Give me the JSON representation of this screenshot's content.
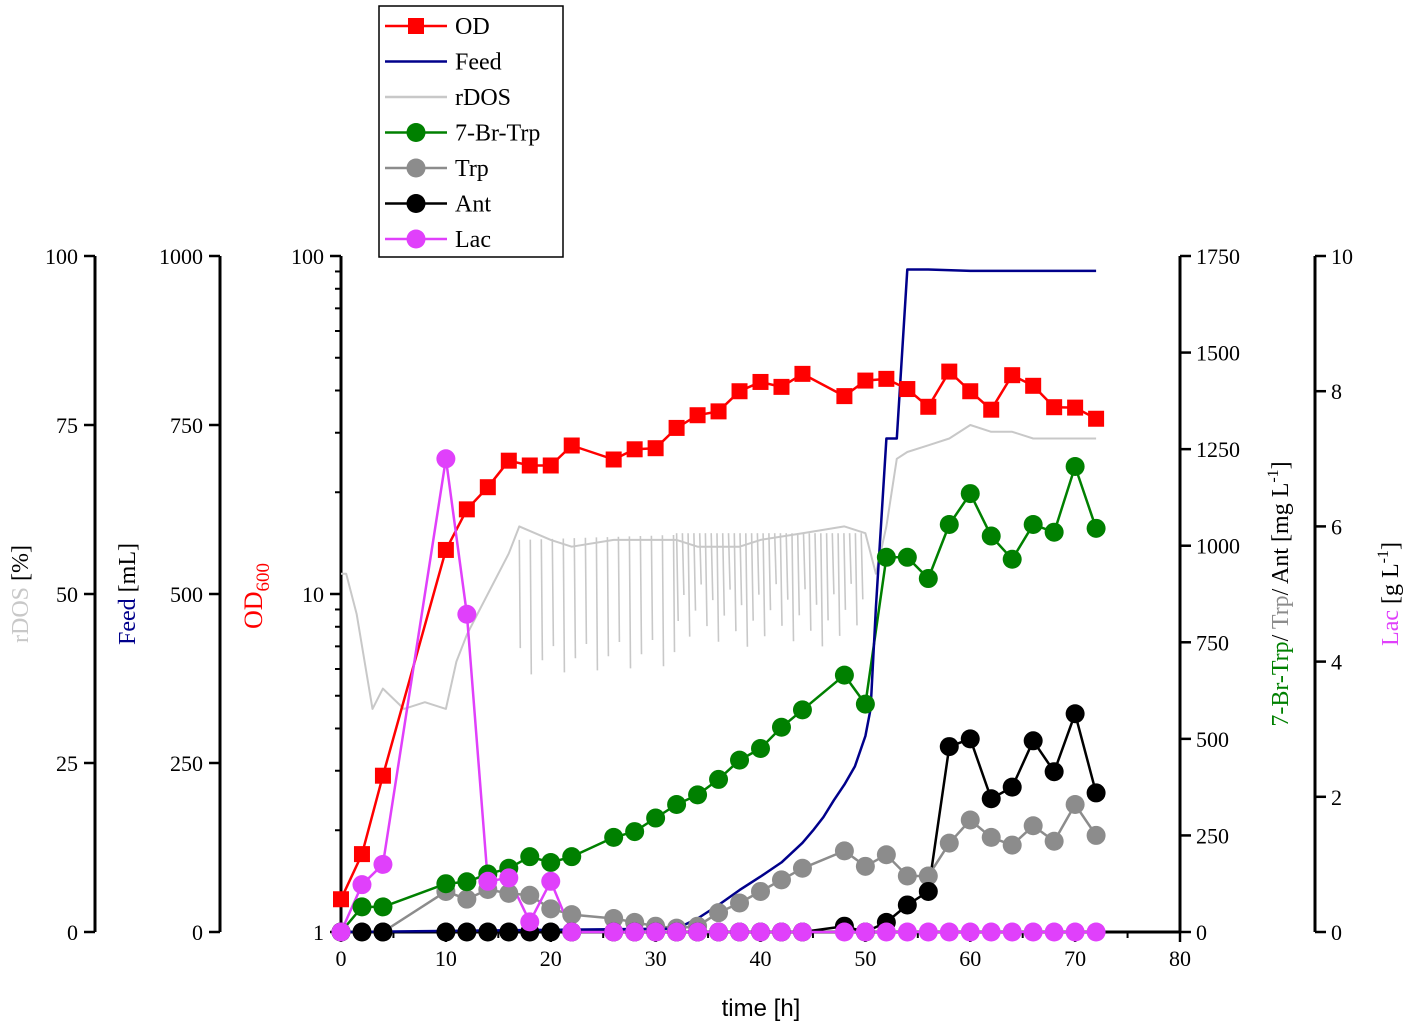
{
  "chart_data": {
    "type": "line",
    "xlabel": "time [h]",
    "x_axis": {
      "min": 0,
      "max": 80,
      "ticks": [
        0,
        10,
        20,
        30,
        40,
        50,
        60,
        70,
        80
      ]
    },
    "axes": {
      "rdos": {
        "label": "rDOS",
        "unit": " [%]",
        "min": 0,
        "max": 100,
        "ticks": [
          0,
          25,
          50,
          75,
          100
        ],
        "color": "#c8c8c8"
      },
      "feed": {
        "label": "Feed",
        "unit": " [mL]",
        "min": 0,
        "max": 1000,
        "ticks": [
          0,
          250,
          500,
          750,
          1000
        ],
        "color": "#00008b"
      },
      "od": {
        "label": "OD",
        "sub": "600",
        "min": 1,
        "max": 100,
        "scale": "log",
        "ticks": [
          "1",
          "10",
          "100"
        ],
        "color": "#ff0000"
      },
      "conc": {
        "label_parts": [
          "7-Br-Trp",
          "/ ",
          "Trp",
          "/ Ant [mg L",
          "-1",
          "]"
        ],
        "min": 0,
        "max": 1750,
        "ticks": [
          0,
          250,
          500,
          750,
          1000,
          1250,
          1500,
          1750
        ]
      },
      "lac": {
        "label": "Lac",
        "unit": " [g L",
        "sup": "-1",
        "unit_end": "]",
        "min": 0,
        "max": 10,
        "ticks": [
          0,
          2,
          4,
          6,
          8,
          10
        ],
        "color": "#e040fb"
      }
    },
    "legend": [
      "OD",
      "Feed",
      "rDOS",
      "7-Br-Trp",
      "Trp",
      "Ant",
      "Lac"
    ],
    "series": [
      {
        "name": "OD",
        "axis": "od",
        "color": "#ff0000",
        "marker": "square",
        "x": [
          0,
          2,
          4,
          10,
          12,
          14,
          16,
          18,
          20,
          22,
          26,
          28,
          30,
          32,
          34,
          36,
          38,
          40,
          42,
          44,
          48,
          50,
          52,
          54,
          56,
          58,
          60,
          62,
          64,
          66,
          68,
          70,
          72
        ],
        "y": [
          1.25,
          1.7,
          2.9,
          13.5,
          17.8,
          20.7,
          24.8,
          24.0,
          24.0,
          27.5,
          25.0,
          26.8,
          27.0,
          31.0,
          33.8,
          34.7,
          39.8,
          42.4,
          41.0,
          44.8,
          38.5,
          42.8,
          43.3,
          40.4,
          35.8,
          45.5,
          39.8,
          35.1,
          44.4,
          41.3,
          35.7,
          35.6,
          33.0
        ]
      },
      {
        "name": "Feed",
        "axis": "feed",
        "color": "#00008b",
        "marker": "none",
        "x": [
          0,
          32,
          34,
          36,
          38,
          40,
          42,
          44,
          45,
          46,
          47,
          48,
          49,
          50,
          50.5,
          51,
          52,
          53,
          54,
          56,
          60,
          72
        ],
        "y": [
          0,
          5,
          20,
          40,
          62,
          82,
          103,
          132,
          150,
          170,
          195,
          218,
          245,
          290,
          330,
          480,
          730,
          730,
          980,
          980,
          978,
          978
        ]
      },
      {
        "name": "rDOS",
        "axis": "rdos",
        "color": "#c8c8c8",
        "marker": "none",
        "x": [
          0,
          0.5,
          1.5,
          3,
          4,
          6,
          8,
          10,
          11,
          12,
          13,
          14,
          16,
          17,
          20,
          22,
          26,
          32,
          34,
          38,
          40,
          44,
          48,
          50,
          51,
          52,
          53,
          54,
          56,
          58,
          60,
          62,
          64,
          66,
          68,
          70,
          72
        ],
        "y": [
          53,
          53,
          47,
          33,
          36,
          33,
          34,
          33,
          40,
          44,
          47,
          50,
          56,
          60,
          58,
          57,
          58,
          58,
          57,
          57,
          58,
          59,
          60,
          59,
          53,
          60,
          70,
          71,
          72,
          73,
          75,
          74,
          74,
          73,
          73,
          73,
          73
        ]
      },
      {
        "name": "7-Br-Trp",
        "axis": "conc",
        "color": "#008000",
        "marker": "circle",
        "x": [
          0,
          2,
          4,
          10,
          12,
          14,
          16,
          18,
          20,
          22,
          26,
          28,
          30,
          32,
          34,
          36,
          38,
          40,
          42,
          44,
          48,
          50,
          52,
          54,
          56,
          58,
          60,
          62,
          64,
          66,
          68,
          70,
          72
        ],
        "y": [
          0,
          65,
          65,
          125,
          130,
          150,
          165,
          195,
          180,
          195,
          245,
          260,
          295,
          330,
          355,
          395,
          445,
          475,
          530,
          575,
          665,
          590,
          970,
          970,
          915,
          1055,
          1135,
          1025,
          965,
          1055,
          1035,
          1205,
          1045
        ]
      },
      {
        "name": "Trp",
        "axis": "conc",
        "color": "#8c8c8c",
        "marker": "circle",
        "x": [
          0,
          4,
          10,
          12,
          14,
          16,
          18,
          20,
          22,
          26,
          28,
          30,
          32,
          34,
          36,
          38,
          40,
          42,
          44,
          48,
          50,
          52,
          54,
          56,
          58,
          60,
          62,
          64,
          66,
          68,
          70,
          72
        ],
        "y": [
          0,
          0,
          105,
          85,
          110,
          100,
          95,
          60,
          45,
          35,
          25,
          15,
          10,
          15,
          50,
          75,
          105,
          135,
          165,
          210,
          170,
          200,
          145,
          145,
          230,
          290,
          245,
          225,
          275,
          235,
          330,
          250
        ]
      },
      {
        "name": "Ant",
        "axis": "conc",
        "color": "#000000",
        "marker": "circle",
        "x": [
          0,
          2,
          4,
          10,
          12,
          14,
          16,
          18,
          20,
          22,
          26,
          28,
          30,
          32,
          34,
          36,
          38,
          40,
          42,
          44,
          48,
          50,
          52,
          54,
          56,
          58,
          60,
          62,
          64,
          66,
          68,
          70,
          72
        ],
        "y": [
          0,
          0,
          0,
          0,
          0,
          0,
          0,
          0,
          0,
          0,
          0,
          0,
          0,
          0,
          0,
          0,
          0,
          0,
          0,
          0,
          15,
          0,
          25,
          70,
          105,
          480,
          500,
          345,
          375,
          495,
          415,
          565,
          360
        ]
      },
      {
        "name": "Lac",
        "axis": "lac",
        "color": "#e040fb",
        "marker": "circle",
        "x": [
          0,
          2,
          4,
          10,
          12,
          14,
          16,
          18,
          20,
          22,
          26,
          28,
          30,
          32,
          34,
          36,
          38,
          40,
          42,
          44,
          48,
          50,
          52,
          54,
          56,
          58,
          60,
          62,
          64,
          66,
          68,
          70,
          72
        ],
        "y": [
          0,
          0.7,
          1.0,
          7.0,
          4.7,
          0.75,
          0.8,
          0.15,
          0.75,
          0,
          0,
          0,
          0,
          0,
          0,
          0,
          0,
          0,
          0,
          0,
          0,
          0,
          0,
          0,
          0,
          0,
          0,
          0,
          0,
          0,
          0,
          0,
          0
        ]
      }
    ]
  }
}
